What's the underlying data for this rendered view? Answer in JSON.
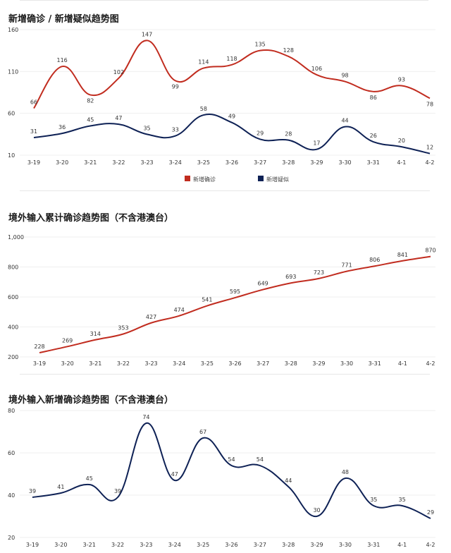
{
  "chart_data": [
    {
      "type": "line",
      "title": "新增确诊 / 新增疑似趋势图",
      "categories": [
        "3-19",
        "3-20",
        "3-21",
        "3-22",
        "3-23",
        "3-24",
        "3-25",
        "3-26",
        "3-27",
        "3-28",
        "3-29",
        "3-30",
        "3-31",
        "4-1",
        "4-2"
      ],
      "ylim": [
        10,
        160
      ],
      "yticks": [
        "160",
        "110",
        "60",
        "10"
      ],
      "legend_position": "bottom-center",
      "series": [
        {
          "name": "新增确诊",
          "color": "#c12c1f",
          "values": [
            66,
            116,
            82,
            102,
            147,
            99,
            114,
            118,
            135,
            128,
            106,
            98,
            86,
            93,
            78
          ]
        },
        {
          "name": "新增疑似",
          "color": "#0e2155",
          "values": [
            31,
            36,
            45,
            47,
            35,
            33,
            58,
            49,
            29,
            28,
            17,
            44,
            26,
            20,
            12
          ]
        }
      ]
    },
    {
      "type": "line",
      "title": "境外输入累计确诊趋势图（不含港澳台）",
      "categories": [
        "3-19",
        "3-20",
        "3-21",
        "3-22",
        "3-23",
        "3-24",
        "3-25",
        "3-26",
        "3-27",
        "3-28",
        "3-29",
        "3-30",
        "3-31",
        "4-1",
        "4-2"
      ],
      "ylim": [
        200,
        1000
      ],
      "yticks": [
        "1,000",
        "800",
        "600",
        "400",
        "200"
      ],
      "series": [
        {
          "color": "#c12c1f",
          "values": [
            228,
            269,
            314,
            353,
            427,
            474,
            541,
            595,
            649,
            693,
            723,
            771,
            806,
            841,
            870
          ]
        }
      ]
    },
    {
      "type": "line",
      "title": "境外输入新增确诊趋势图（不含港澳台）",
      "categories": [
        "3-19",
        "3-20",
        "3-21",
        "3-22",
        "3-23",
        "3-24",
        "3-25",
        "3-26",
        "3-27",
        "3-28",
        "3-29",
        "3-30",
        "3-31",
        "4-1",
        "4-2"
      ],
      "ylim": [
        20,
        80
      ],
      "yticks": [
        "80",
        "60",
        "40",
        "20"
      ],
      "series": [
        {
          "color": "#0e2155",
          "values": [
            39,
            41,
            45,
            39,
            74,
            47,
            67,
            54,
            54,
            44,
            30,
            48,
            35,
            35,
            29
          ]
        }
      ]
    }
  ]
}
